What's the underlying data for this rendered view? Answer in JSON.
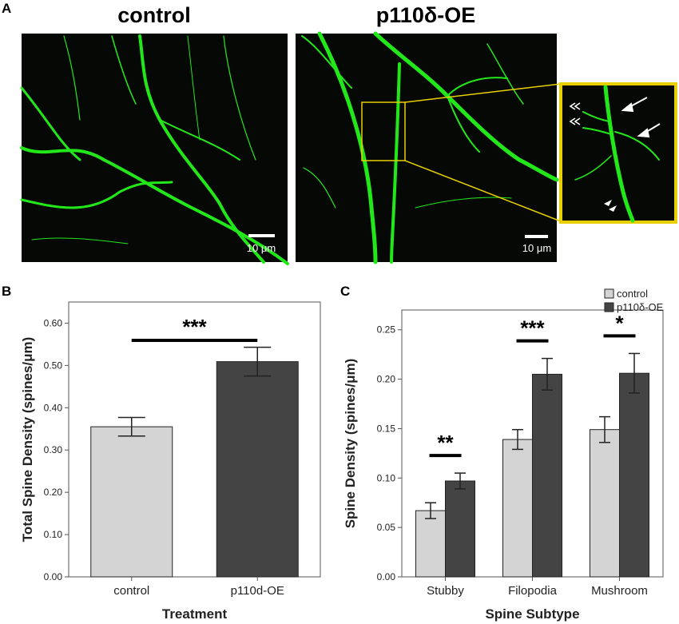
{
  "panel_a": {
    "letter": "A",
    "images": [
      {
        "title": "control",
        "scale_bar": "10 μm"
      },
      {
        "title": "p110δ-OE",
        "scale_bar": "10 μm"
      }
    ]
  },
  "colors": {
    "control": "#d4d4d4",
    "p110d_oe": "#444444",
    "neuron": "#22e81a",
    "inset_border": "#e8d000"
  },
  "chart_data": [
    {
      "panel": "B",
      "type": "bar",
      "categories": [
        "control",
        "p110d-OE"
      ],
      "values": [
        0.355,
        0.509
      ],
      "errors": [
        0.022,
        0.034
      ],
      "ylabel": "Total Spine Density (spines/μm)",
      "xlabel": "Treatment",
      "ylim": [
        0,
        0.65
      ],
      "yticks": [
        "0.00",
        "0.10",
        "0.20",
        "0.30",
        "0.40",
        "0.50",
        "0.60"
      ],
      "significance": [
        {
          "label": "***"
        }
      ]
    },
    {
      "panel": "C",
      "type": "bar",
      "categories": [
        "Stubby",
        "Filopodia",
        "Mushroom"
      ],
      "series": [
        {
          "name": "control",
          "values": [
            0.067,
            0.139,
            0.149
          ],
          "errors": [
            0.008,
            0.01,
            0.013
          ]
        },
        {
          "name": "p110δ-OE",
          "values": [
            0.097,
            0.205,
            0.206
          ],
          "errors": [
            0.008,
            0.016,
            0.02
          ]
        }
      ],
      "ylabel": "Spine Density (spines/μm)",
      "xlabel": "Spine Subtype",
      "ylim": [
        0,
        0.27
      ],
      "yticks": [
        "0.00",
        "0.05",
        "0.10",
        "0.15",
        "0.20",
        "0.25"
      ],
      "significance": [
        {
          "label": "**"
        },
        {
          "label": "***"
        },
        {
          "label": "*"
        }
      ],
      "legend_position": "top-right"
    }
  ]
}
